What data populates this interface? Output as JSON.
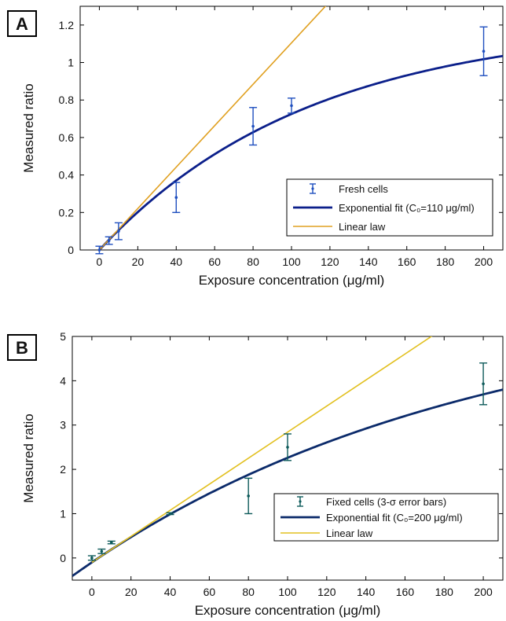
{
  "chart_data": [
    {
      "type": "scatter",
      "panel_label": "A",
      "xlabel": "Exposure concentration (μg/ml)",
      "ylabel": "Measured ratio",
      "xlim": [
        -10,
        210
      ],
      "ylim": [
        0,
        1.3
      ],
      "xticks": [
        0,
        20,
        40,
        60,
        80,
        100,
        120,
        140,
        160,
        180,
        200
      ],
      "yticks": [
        0,
        0.2,
        0.4,
        0.6,
        0.8,
        1,
        1.2
      ],
      "ytick_labels": [
        "0",
        "0.2",
        "0.4",
        "0.6",
        "0.8",
        "1",
        "1.2"
      ],
      "grid": false,
      "legend_position": "bottom-right",
      "series": [
        {
          "name": "Fresh cells",
          "kind": "errorbar",
          "color": "#1f4fbf",
          "x": [
            0,
            5,
            10,
            40,
            80,
            100,
            200
          ],
          "y": [
            0.0,
            0.05,
            0.1,
            0.28,
            0.66,
            0.77,
            1.06
          ],
          "yerr_low": [
            0.02,
            0.02,
            0.045,
            0.08,
            0.1,
            0.04,
            0.13
          ],
          "yerr_high": [
            0.02,
            0.02,
            0.045,
            0.08,
            0.1,
            0.04,
            0.13
          ]
        },
        {
          "name": "Exponential fit (C₀=110 μg/ml)",
          "kind": "exp_fit",
          "color": "#0b1f8a",
          "amplitude": 1.215,
          "c0": 110
        },
        {
          "name": "Linear law",
          "kind": "linear",
          "color": "#e0a020",
          "slope": 0.01105
        }
      ]
    },
    {
      "type": "scatter",
      "panel_label": "B",
      "xlabel": "Exposure concentration (μg/ml)",
      "ylabel": "Measured ratio",
      "xlim": [
        -10,
        210
      ],
      "ylim": [
        -0.5,
        5
      ],
      "xticks": [
        0,
        20,
        40,
        60,
        80,
        100,
        120,
        140,
        160,
        180,
        200
      ],
      "yticks": [
        0,
        1,
        2,
        3,
        4,
        5
      ],
      "ytick_labels": [
        "0",
        "1",
        "2",
        "3",
        "4",
        "5"
      ],
      "grid": false,
      "legend_position": "bottom-right",
      "series": [
        {
          "name": "Fixed cells (3-σ error bars)",
          "kind": "errorbar",
          "color": "#0d5a5a",
          "x": [
            0,
            5,
            10,
            40,
            80,
            100,
            200
          ],
          "y": [
            0.0,
            0.15,
            0.35,
            1.0,
            1.4,
            2.5,
            3.93
          ],
          "yerr_low": [
            0.05,
            0.05,
            0.03,
            0.02,
            0.4,
            0.3,
            0.47
          ],
          "yerr_high": [
            0.05,
            0.05,
            0.03,
            0.02,
            0.4,
            0.3,
            0.47
          ]
        },
        {
          "name": "Exponential fit (C₀=200 μg/ml)",
          "kind": "exp_fit",
          "color": "#0b2a6a",
          "amplitude": 6.0,
          "c0": 200,
          "offset": -0.1
        },
        {
          "name": "Linear law",
          "kind": "linear",
          "color": "#e2c020",
          "slope": 0.0294,
          "intercept": -0.1
        }
      ]
    }
  ]
}
